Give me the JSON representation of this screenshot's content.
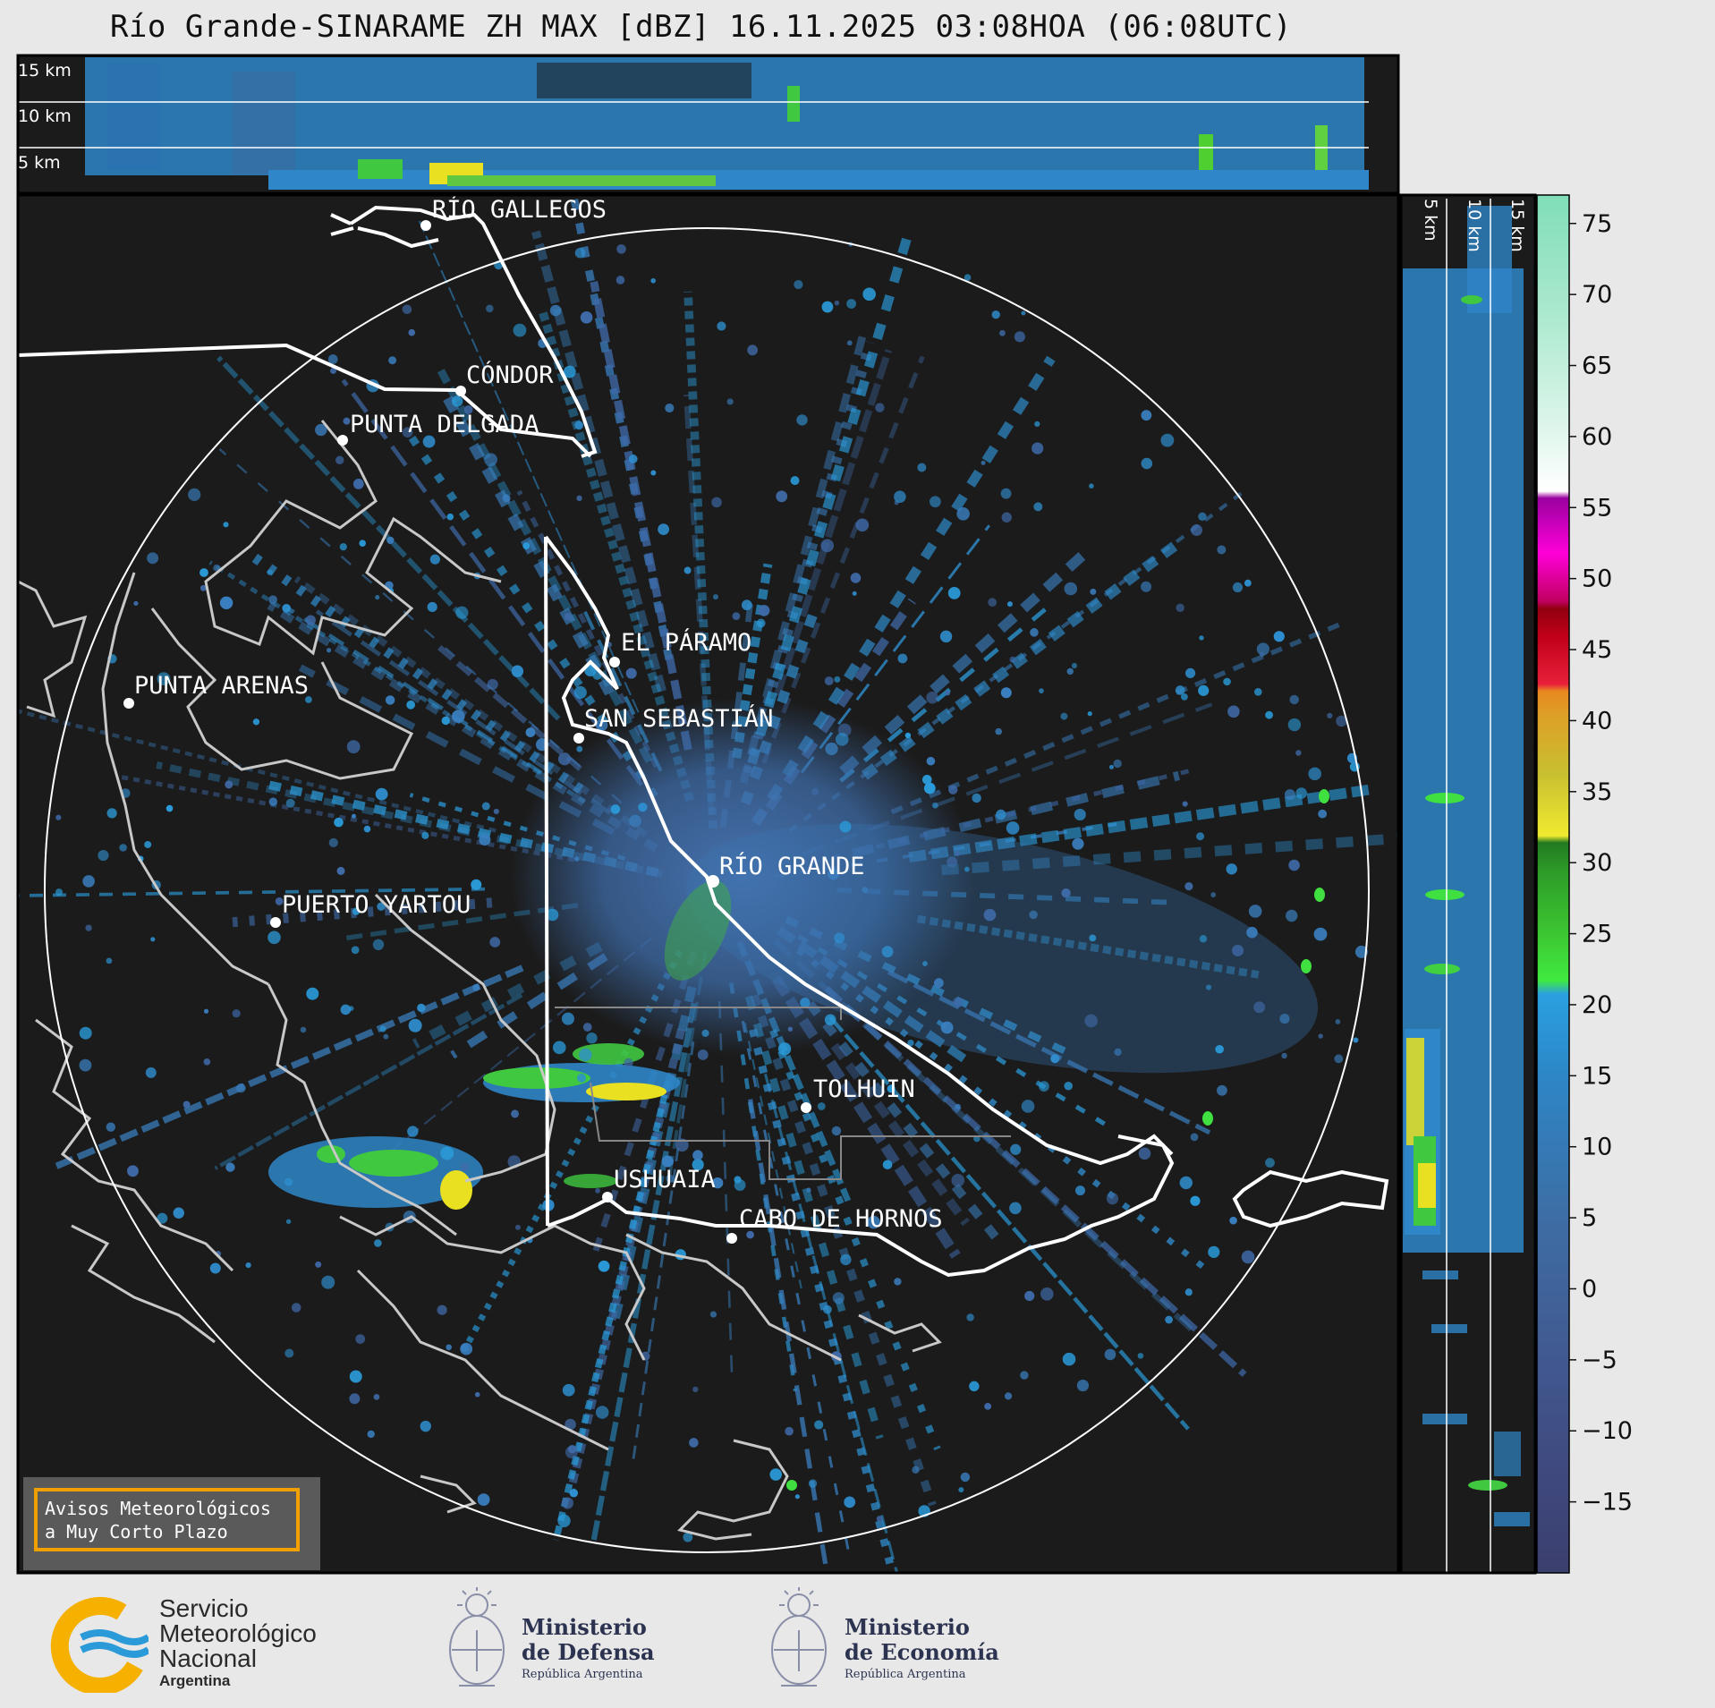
{
  "title": "Río Grande-SINARAME ZH MAX [dBZ] 16.11.2025 03:08HOA (06:08UTC)",
  "map": {
    "locations": [
      {
        "name": "RÍO GALLEGOS"
      },
      {
        "name": "CÓNDOR"
      },
      {
        "name": "PUNTA DELGADA"
      },
      {
        "name": "EL PÁRAMO"
      },
      {
        "name": "PUNTA ARENAS"
      },
      {
        "name": "SAN SEBASTIÁN"
      },
      {
        "name": "RÍO GRANDE"
      },
      {
        "name": "PUERTO YARTOU"
      },
      {
        "name": "TOLHUIN"
      },
      {
        "name": "USHUAIA"
      },
      {
        "name": "CABO DE HORNOS"
      }
    ]
  },
  "top_panel": {
    "altitudes": [
      "15 km",
      "10 km",
      "5 km"
    ]
  },
  "side_panel": {
    "altitudes": [
      "5 km",
      "10 km",
      "15 km"
    ]
  },
  "colorbar": {
    "ticks": [
      "75",
      "70",
      "65",
      "60",
      "55",
      "50",
      "45",
      "40",
      "35",
      "30",
      "25",
      "20",
      "15",
      "10",
      "5",
      "0",
      "−5",
      "−10",
      "−15"
    ],
    "min": -20,
    "max": 77
  },
  "alert": {
    "line1": "Avisos Meteorológicos",
    "line2": "a Muy Corto Plazo"
  },
  "footer": {
    "smn": {
      "line1": "Servicio",
      "line2": "Meteorológico",
      "line3": "Nacional",
      "line4": "Argentina"
    },
    "defensa": {
      "line1": "Ministerio",
      "line2": "de Defensa",
      "line3": "República Argentina"
    },
    "economia": {
      "line1": "Ministerio",
      "line2": "de Economía",
      "line3": "República Argentina"
    }
  },
  "colors": {
    "map_bg": "#1b1b1b",
    "echo_blue": "#2f8fd0",
    "echo_dark": "#3a6090",
    "echo_green": "#40d040",
    "echo_yellow": "#e8e020",
    "accent": "#f0a000"
  }
}
